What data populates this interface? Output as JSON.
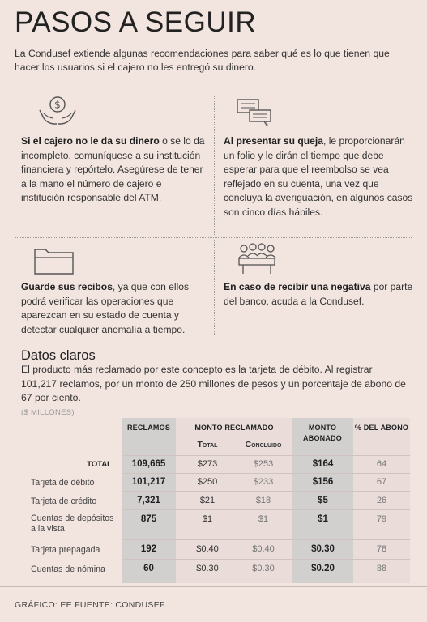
{
  "header": {
    "title": "PASOS A SEGUIR",
    "intro": "La Condusef extiende algunas recomendaciones para saber qué es lo que tienen que hacer los usuarios si el cajero no les entregó su dinero."
  },
  "steps": [
    {
      "icon": "money-hands-icon",
      "lead": "Si el cajero no le da su dinero",
      "text": " o se lo da incompleto, comuníquese a su institución financiera y repórtelo. Asegúrese de tener a la mano el número de cajero e institución responsable del ATM."
    },
    {
      "icon": "chat-bubbles-icon",
      "lead": "Al presentar su queja",
      "text": ", le proporcionarán un folio y le dirán el tiempo que debe esperar para que el reembolso se vea reflejado en su cuenta, una vez que concluya la averiguación, en algunos casos son cinco días hábiles."
    },
    {
      "icon": "folder-icon",
      "lead": "Guarde sus recibos",
      "text": ", ya que con ellos podrá verificar las operaciones que aparezcan en su estado de cuenta y detectar cualquier anomalía a tiempo."
    },
    {
      "icon": "meeting-icon",
      "lead": "En caso de recibir una negativa",
      "text": " por parte del banco, acuda a la Condusef."
    }
  ],
  "datos": {
    "title": "Datos claros",
    "text": "El producto más reclamado por este concepto es la tarjeta de débito. Al registrar 101,217 reclamos, por un monto de 250 millones de pesos y un porcentaje de abono de 67 por ciento.",
    "units": "($ MILLONES)"
  },
  "table": {
    "headers": {
      "reclamos": "RECLAMOS",
      "monto_reclamado": "MONTO RECLAMADO",
      "total": "Total",
      "concluido": "Concluido",
      "monto_abonado": "MONTO ABONADO",
      "pct_abono": "% DEL ABONO"
    },
    "rows": [
      {
        "label": "TOTAL",
        "reclamos": "109,665",
        "total": "$273",
        "concluido": "$253",
        "abonado": "$164",
        "pct": "64"
      },
      {
        "label": "Tarjeta de débito",
        "reclamos": "101,217",
        "total": "$250",
        "concluido": "$233",
        "abonado": "$156",
        "pct": "67"
      },
      {
        "label": "Tarjeta de crédito",
        "reclamos": "7,321",
        "total": "$21",
        "concluido": "$18",
        "abonado": "$5",
        "pct": "26"
      },
      {
        "label": "Cuentas de depósitos a la vista",
        "reclamos": "875",
        "total": "$1",
        "concluido": "$1",
        "abonado": "$1",
        "pct": "79"
      },
      {
        "label": "Tarjeta prepagada",
        "reclamos": "192",
        "total": "$0.40",
        "concluido": "$0.40",
        "abonado": "$0.30",
        "pct": "78"
      },
      {
        "label": "Cuentas de nómina",
        "reclamos": "60",
        "total": "$0.30",
        "concluido": "$0.30",
        "abonado": "$0.20",
        "pct": "88"
      }
    ]
  },
  "footer": "GRÁFICO: EE  FUENTE: CONDUSEF."
}
